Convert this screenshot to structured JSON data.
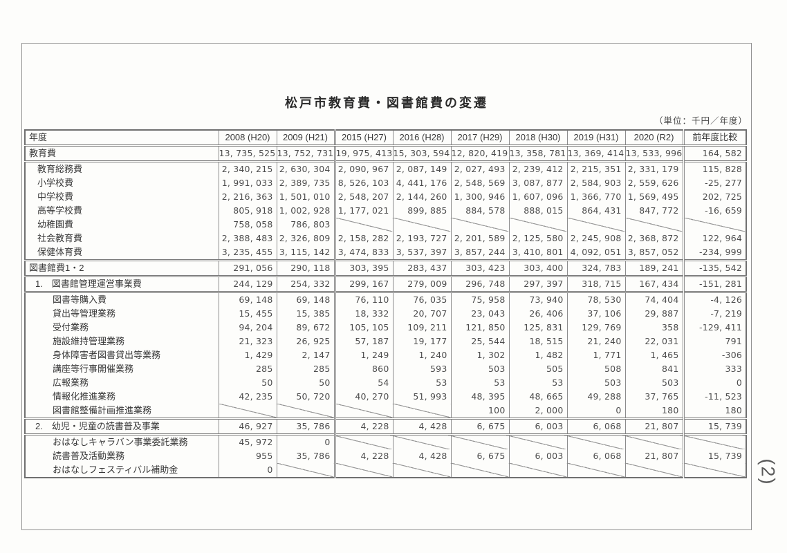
{
  "page": {
    "title": "松戸市教育費・図書館費の変遷",
    "unit_note": "（単位：千円／年度）",
    "handwritten_page_number": "(2)"
  },
  "table": {
    "columns": [
      "年度",
      "2008 (H20)",
      "2009 (H21)",
      "2015 (H27)",
      "2016 (H28)",
      "2017 (H29)",
      "2018 (H30)",
      "2019 (H31)",
      "2020 (R2)",
      "前年度比較"
    ],
    "rows": [
      {
        "label": "教育費",
        "level": 0,
        "divider_top": false,
        "values": [
          "13,735,525",
          "13,752,731",
          "19,975,413",
          "15,303,594",
          "12,820,419",
          "13,358,781",
          "13,369,414",
          "13,533,996",
          "164,582"
        ]
      },
      {
        "label": "教育総務費",
        "level": 1,
        "divider_top": true,
        "values": [
          "2,340,215",
          "2,630,304",
          "2,090,967",
          "2,087,149",
          "2,027,493",
          "2,239,412",
          "2,215,351",
          "2,331,179",
          "115,828"
        ]
      },
      {
        "label": "小学校費",
        "level": 1,
        "divider_top": false,
        "values": [
          "1,991,033",
          "2,389,735",
          "8,526,103",
          "4,441,176",
          "2,548,569",
          "3,087,877",
          "2,584,903",
          "2,559,626",
          "-25,277"
        ]
      },
      {
        "label": "中学校費",
        "level": 1,
        "divider_top": false,
        "values": [
          "2,216,363",
          "1,501,010",
          "2,548,207",
          "2,144,260",
          "1,300,946",
          "1,607,096",
          "1,366,770",
          "1,569,495",
          "202,725"
        ]
      },
      {
        "label": "高等学校費",
        "level": 1,
        "divider_top": false,
        "values": [
          "805,918",
          "1,002,928",
          "1,177,021",
          "899,885",
          "884,578",
          "888,015",
          "864,431",
          "847,772",
          "-16,659"
        ]
      },
      {
        "label": "幼稚園費",
        "level": 1,
        "divider_top": false,
        "values": [
          "758,058",
          "786,803",
          null,
          null,
          null,
          null,
          null,
          null,
          null
        ]
      },
      {
        "label": "社会教育費",
        "level": 1,
        "divider_top": false,
        "values": [
          "2,388,483",
          "2,326,809",
          "2,158,282",
          "2,193,727",
          "2,201,589",
          "2,125,580",
          "2,245,908",
          "2,368,872",
          "122,964"
        ]
      },
      {
        "label": "保健体育費",
        "level": 1,
        "divider_top": false,
        "values": [
          "3,235,455",
          "3,115,142",
          "3,474,833",
          "3,537,397",
          "3,857,244",
          "3,410,801",
          "4,092,051",
          "3,857,052",
          "-234,999"
        ]
      },
      {
        "label": "図書館費1・2",
        "level": 0,
        "divider_top": true,
        "values": [
          "291,056",
          "290,118",
          "303,395",
          "283,437",
          "303,423",
          "303,400",
          "324,783",
          "189,241",
          "-135,542"
        ]
      },
      {
        "label": "1.　図書館管理運営事業費",
        "level": "n",
        "divider_top": true,
        "values": [
          "244,129",
          "254,332",
          "299,167",
          "279,009",
          "296,748",
          "297,397",
          "318,715",
          "167,434",
          "-151,281"
        ]
      },
      {
        "label": "図書等購入費",
        "level": 2,
        "divider_top": true,
        "values": [
          "69,148",
          "69,148",
          "76,110",
          "76,035",
          "75,958",
          "73,940",
          "78,530",
          "74,404",
          "-4,126"
        ]
      },
      {
        "label": "貸出等管理業務",
        "level": 2,
        "divider_top": false,
        "values": [
          "15,455",
          "15,385",
          "18,332",
          "20,707",
          "23,043",
          "26,406",
          "37,106",
          "29,887",
          "-7,219"
        ]
      },
      {
        "label": "受付業務",
        "level": 2,
        "divider_top": false,
        "values": [
          "94,204",
          "89,672",
          "105,105",
          "109,211",
          "121,850",
          "125,831",
          "129,769",
          "358",
          "-129,411"
        ]
      },
      {
        "label": "施設維持管理業務",
        "level": 2,
        "divider_top": false,
        "values": [
          "21,323",
          "26,925",
          "57,187",
          "19,177",
          "25,544",
          "18,515",
          "21,240",
          "22,031",
          "791"
        ]
      },
      {
        "label": "身体障害者図書貸出等業務",
        "level": 2,
        "divider_top": false,
        "values": [
          "1,429",
          "2,147",
          "1,249",
          "1,240",
          "1,302",
          "1,482",
          "1,771",
          "1,465",
          "-306"
        ]
      },
      {
        "label": "講座等行事開催業務",
        "level": 2,
        "divider_top": false,
        "values": [
          "285",
          "285",
          "860",
          "593",
          "503",
          "505",
          "508",
          "841",
          "333"
        ]
      },
      {
        "label": "広報業務",
        "level": 2,
        "divider_top": false,
        "values": [
          "50",
          "50",
          "54",
          "53",
          "53",
          "53",
          "503",
          "503",
          "0"
        ]
      },
      {
        "label": "情報化推進業務",
        "level": 2,
        "divider_top": false,
        "values": [
          "42,235",
          "50,720",
          "40,270",
          "51,993",
          "48,395",
          "48,665",
          "49,288",
          "37,765",
          "-11,523"
        ]
      },
      {
        "label": "図書館整備計画推進業務",
        "level": 2,
        "divider_top": false,
        "values": [
          null,
          null,
          null,
          null,
          "100",
          "2,000",
          "0",
          "180",
          "180"
        ]
      },
      {
        "label": "2.　幼児・児童の読書普及事業",
        "level": "n",
        "divider_top": true,
        "values": [
          "46,927",
          "35,786",
          "4,228",
          "4,428",
          "6,675",
          "6,003",
          "6,068",
          "21,807",
          "15,739"
        ]
      },
      {
        "label": "おはなしキャラバン事業委託業務",
        "level": 2,
        "divider_top": true,
        "values": [
          "45,972",
          "0",
          null,
          null,
          null,
          null,
          null,
          null,
          null
        ]
      },
      {
        "label": "読書普及活動業務",
        "level": 2,
        "divider_top": false,
        "values": [
          "955",
          "35,786",
          "4,228",
          "4,428",
          "6,675",
          "6,003",
          "6,068",
          "21,807",
          "15,739"
        ]
      },
      {
        "label": "おはなしフェスティバル補助金",
        "level": 2,
        "divider_top": false,
        "values": [
          "0",
          null,
          null,
          null,
          null,
          null,
          null,
          null,
          null
        ]
      }
    ]
  }
}
